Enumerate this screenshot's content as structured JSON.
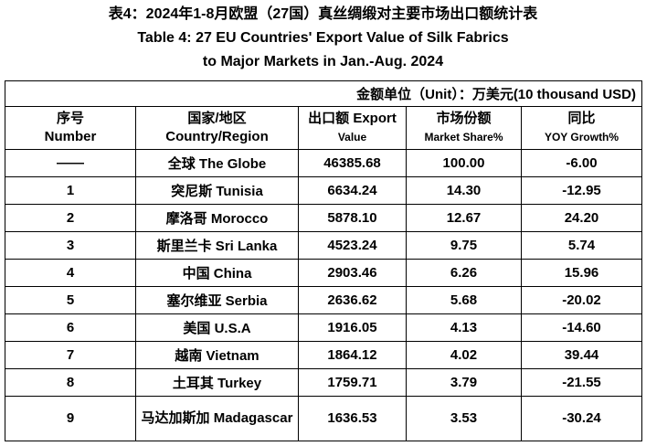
{
  "header": {
    "title_cn": "表4：2024年1-8月欧盟（27国）真丝绸缎对主要市场出口额统计表",
    "title_en": "Table 4: 27 EU Countries' Export Value of Silk Fabrics to Major Markets in Jan.-Aug. 2024"
  },
  "table": {
    "unit": "金额单位（Unit）：万美元(10 thousand USD)",
    "columns": [
      [
        "序号",
        "Number"
      ],
      [
        "国家/地区",
        "Country/Region"
      ],
      [
        "出口额 Export",
        "Value"
      ],
      [
        "市场份额",
        "Market Share%"
      ],
      [
        "同比",
        "YOY Growth%"
      ]
    ],
    "rows": [
      [
        "——",
        "全球 The Globe",
        "46385.68",
        "100.00",
        "-6.00"
      ],
      [
        "1",
        "突尼斯 Tunisia",
        "6634.24",
        "14.30",
        "-12.95"
      ],
      [
        "2",
        "摩洛哥 Morocco",
        "5878.10",
        "12.67",
        "24.20"
      ],
      [
        "3",
        "斯里兰卡 Sri Lanka",
        "4523.24",
        "9.75",
        "5.74"
      ],
      [
        "4",
        "中国 China",
        "2903.46",
        "6.26",
        "15.96"
      ],
      [
        "5",
        "塞尔维亚 Serbia",
        "2636.62",
        "5.68",
        "-20.02"
      ],
      [
        "6",
        "美国 U.S.A",
        "1916.05",
        "4.13",
        "-14.60"
      ],
      [
        "7",
        "越南 Vietnam",
        "1864.12",
        "4.02",
        "39.44"
      ],
      [
        "8",
        "土耳其 Turkey",
        "1759.71",
        "3.79",
        "-21.55"
      ],
      [
        "9",
        "马达加斯加 Madagascar",
        "1636.53",
        "3.53",
        "-30.24"
      ]
    ]
  }
}
